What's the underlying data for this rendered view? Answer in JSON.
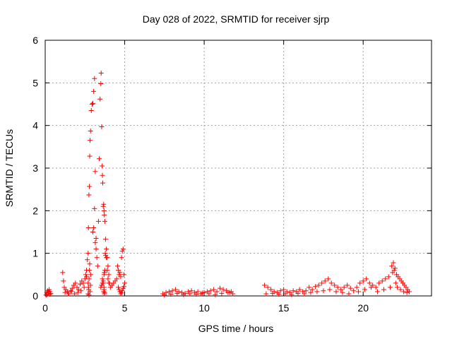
{
  "chart_data": {
    "type": "scatter",
    "title": "Day 028 of 2022, SRMTID for receiver sjrp",
    "xlabel": "GPS time / hours",
    "ylabel": "SRMTID / TECUs",
    "xlim": [
      0,
      24.3
    ],
    "ylim": [
      0,
      6
    ],
    "x_ticks": [
      0,
      5,
      10,
      15,
      20
    ],
    "y_ticks": [
      0,
      1,
      2,
      3,
      4,
      5,
      6
    ],
    "grid": true,
    "marker": "plus",
    "color": "#ff0000",
    "series": [
      {
        "x": [
          0.05,
          0.1,
          0.15,
          0.2,
          0.25,
          0.3,
          0.35,
          0.1,
          0.2,
          0.3,
          1.1,
          1.15,
          1.2,
          1.3,
          1.4,
          1.5,
          1.6,
          1.7,
          1.8,
          1.9,
          2.0,
          2.1,
          2.2,
          2.3,
          2.4,
          2.5,
          2.6,
          1.25,
          1.45,
          1.65,
          1.85,
          2.05,
          2.25,
          2.45,
          2.55,
          2.6,
          2.65,
          2.7,
          2.72,
          2.75,
          2.78,
          2.8,
          2.82,
          2.85,
          2.9,
          2.95,
          3.0,
          3.05,
          3.1,
          3.15,
          3.2,
          3.25,
          3.3,
          2.7,
          2.72,
          2.74,
          2.76,
          2.78,
          2.8,
          2.82,
          2.84,
          2.86,
          2.7,
          2.75,
          3.0,
          3.05,
          3.1,
          3.15,
          3.2,
          3.35,
          3.4,
          3.45,
          3.5,
          3.52,
          3.55,
          3.58,
          3.6,
          3.62,
          3.65,
          3.68,
          3.7,
          3.72,
          3.75,
          3.78,
          3.8,
          3.85,
          3.9,
          3.95,
          4.0,
          3.5,
          3.55,
          3.6,
          3.65,
          3.7,
          3.72,
          3.75,
          3.68,
          3.7,
          3.72,
          3.74,
          3.6,
          3.65,
          3.7,
          3.8,
          3.85,
          3.9,
          3.95,
          4.0,
          4.05,
          4.1,
          4.2,
          4.3,
          4.4,
          4.5,
          4.55,
          4.6,
          4.65,
          4.7,
          4.75,
          4.8,
          4.85,
          4.9,
          4.95,
          5.0,
          4.6,
          4.65,
          4.7,
          4.75,
          4.8,
          4.85,
          4.9,
          4.95,
          7.4,
          7.6,
          7.8,
          8.0,
          8.2,
          8.4,
          8.6,
          8.8,
          9.0,
          9.2,
          9.4,
          9.6,
          9.8,
          10.0,
          10.2,
          10.4,
          10.6,
          10.8,
          11.0,
          11.2,
          11.4,
          11.6,
          11.8,
          7.5,
          7.9,
          8.3,
          8.7,
          9.1,
          9.5,
          9.9,
          10.3,
          10.7,
          11.1,
          11.5,
          11.7,
          13.8,
          14.0,
          14.2,
          14.4,
          14.6,
          14.8,
          15.0,
          15.2,
          15.4,
          15.6,
          15.8,
          16.0,
          16.2,
          16.4,
          16.6,
          16.8,
          17.0,
          17.2,
          17.4,
          17.6,
          17.8,
          18.0,
          18.2,
          18.4,
          18.6,
          18.8,
          19.0,
          19.2,
          19.4,
          13.9,
          14.3,
          14.7,
          15.1,
          15.5,
          15.9,
          16.3,
          16.7,
          17.1,
          17.5,
          17.9,
          18.3,
          18.7,
          19.1,
          19.6,
          19.8,
          20.0,
          20.2,
          20.4,
          20.6,
          20.8,
          21.0,
          21.2,
          21.4,
          21.6,
          21.8,
          21.9,
          22.0,
          22.1,
          22.2,
          22.3,
          22.4,
          22.5,
          22.6,
          22.7,
          22.8,
          22.9,
          19.7,
          20.1,
          20.5,
          20.9,
          21.3,
          21.7,
          21.85,
          21.95,
          22.05,
          22.15,
          22.35,
          22.55,
          22.75
        ],
        "y": [
          0.02,
          0.08,
          0.12,
          0.05,
          0.15,
          0.1,
          0.06,
          0.03,
          0.09,
          0.04,
          0.55,
          0.35,
          0.2,
          0.15,
          0.1,
          0.05,
          0.12,
          0.18,
          0.25,
          0.3,
          0.2,
          0.15,
          0.28,
          0.35,
          0.3,
          0.4,
          0.45,
          0.08,
          0.05,
          0.1,
          0.05,
          0.08,
          0.12,
          0.2,
          0.5,
          0.6,
          0.85,
          1.0,
          1.6,
          2.37,
          2.57,
          3.28,
          3.65,
          3.87,
          4.35,
          4.5,
          4.52,
          4.8,
          5.1,
          1.25,
          1.1,
          0.9,
          0.7,
          0.3,
          0.2,
          0.15,
          0.4,
          0.6,
          0.75,
          0.1,
          0.25,
          0.5,
          0.05,
          0.02,
          1.5,
          1.6,
          2.05,
          2.92,
          1.35,
          1.75,
          3.22,
          4.62,
          4.98,
          5.23,
          3.97,
          3.05,
          2.83,
          2.65,
          2.1,
          2.15,
          2.0,
          1.9,
          1.75,
          1.0,
          0.95,
          0.9,
          0.6,
          0.4,
          0.3,
          0.2,
          0.25,
          0.3,
          0.35,
          0.5,
          0.55,
          0.6,
          0.1,
          0.15,
          0.05,
          0.08,
          0.4,
          0.3,
          0.2,
          1.33,
          1.1,
          0.9,
          0.7,
          0.5,
          0.3,
          0.2,
          0.25,
          0.3,
          0.35,
          0.4,
          0.7,
          0.6,
          0.5,
          0.55,
          0.45,
          0.9,
          1.05,
          1.1,
          0.5,
          0.3,
          0.2,
          0.15,
          0.1,
          0.05,
          0.08,
          0.12,
          0.18,
          0.22,
          0.05,
          0.08,
          0.1,
          0.12,
          0.15,
          0.1,
          0.08,
          0.06,
          0.1,
          0.12,
          0.08,
          0.1,
          0.05,
          0.08,
          0.1,
          0.12,
          0.15,
          0.1,
          0.18,
          0.15,
          0.12,
          0.08,
          0.05,
          0.02,
          0.04,
          0.06,
          0.03,
          0.05,
          0.04,
          0.07,
          0.05,
          0.03,
          0.06,
          0.08,
          0.1,
          0.25,
          0.2,
          0.15,
          0.1,
          0.08,
          0.12,
          0.15,
          0.1,
          0.08,
          0.12,
          0.1,
          0.15,
          0.1,
          0.12,
          0.2,
          0.15,
          0.22,
          0.25,
          0.3,
          0.35,
          0.4,
          0.3,
          0.25,
          0.2,
          0.15,
          0.2,
          0.25,
          0.18,
          0.12,
          0.05,
          0.06,
          0.04,
          0.05,
          0.03,
          0.06,
          0.05,
          0.08,
          0.1,
          0.12,
          0.15,
          0.1,
          0.08,
          0.05,
          0.2,
          0.3,
          0.35,
          0.4,
          0.3,
          0.25,
          0.2,
          0.3,
          0.35,
          0.4,
          0.45,
          0.7,
          0.78,
          0.65,
          0.5,
          0.45,
          0.4,
          0.35,
          0.3,
          0.25,
          0.2,
          0.15,
          0.1,
          0.1,
          0.15,
          0.2,
          0.1,
          0.15,
          0.2,
          0.55,
          0.6,
          0.3,
          0.2,
          0.15,
          0.1,
          0.08
        ]
      }
    ]
  }
}
